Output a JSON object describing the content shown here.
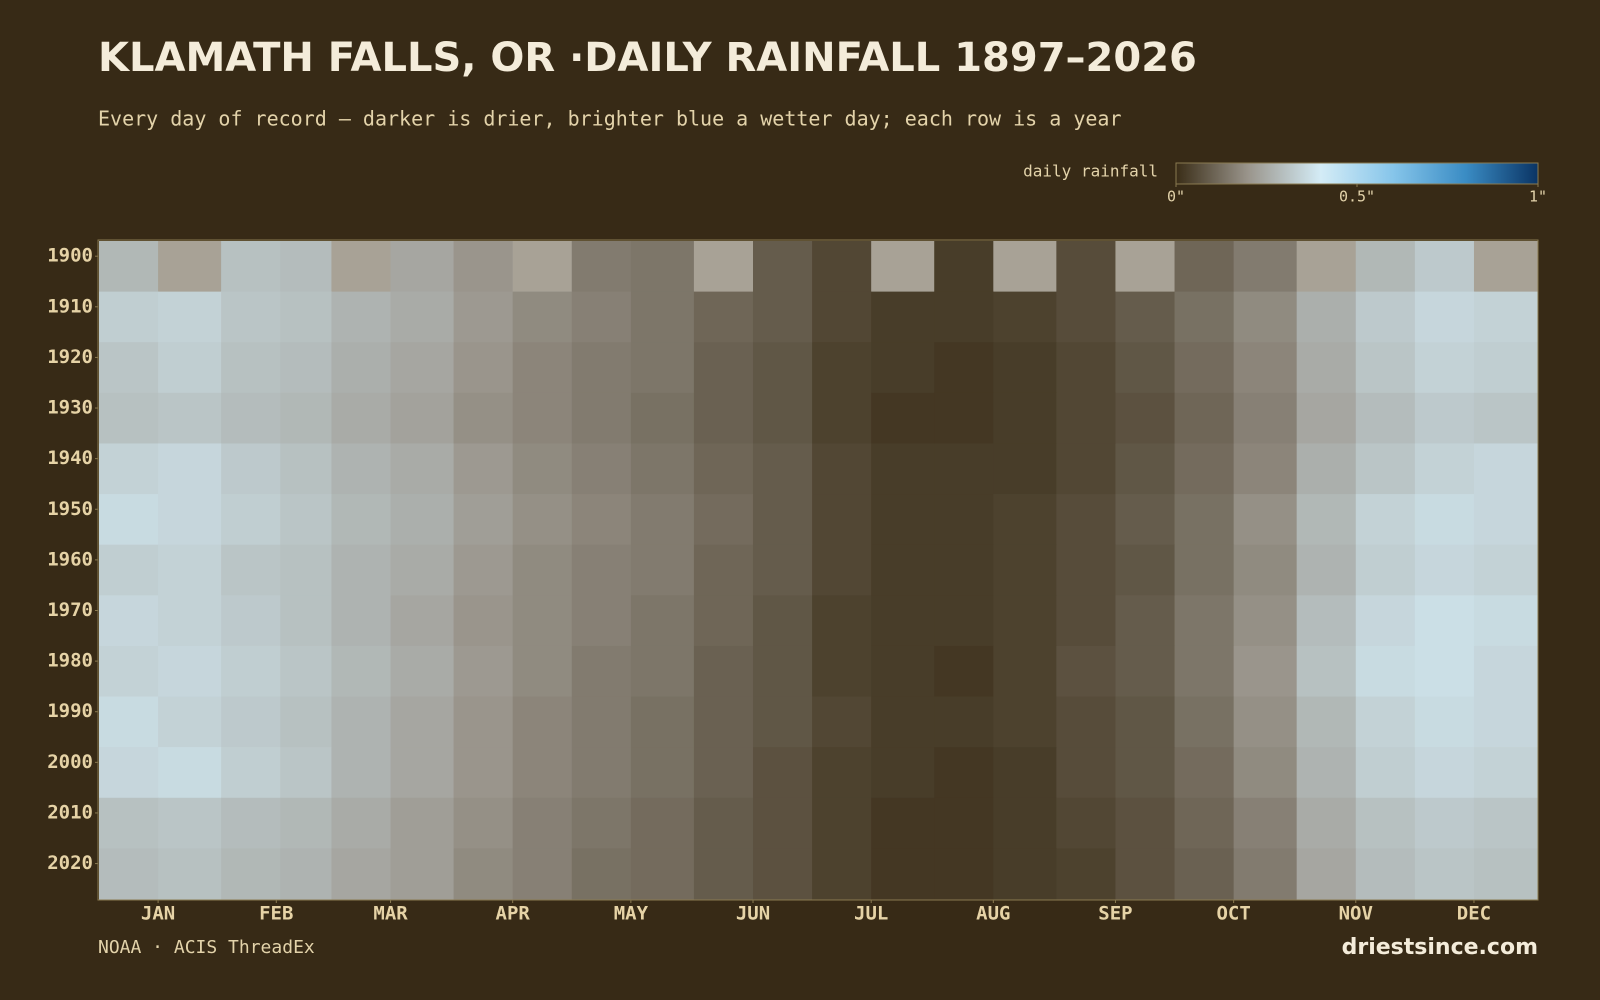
{
  "chart_data": {
    "type": "heatmap",
    "title": "KLAMATH FALLS, OR ·DAILY RAINFALL 1897–2026",
    "subtitle": "Every day of record — darker is drier, brighter blue a wetter day; each row is a year",
    "legend_title": "daily rainfall",
    "colorscale": [
      "#3a2d17",
      "#9a958c",
      "#d4ecf6",
      "#86c5ea",
      "#3a8cc4",
      "#0a3464"
    ],
    "missing_color": "#a8a296",
    "colorbar_lim": [
      0,
      1
    ],
    "colorbar_ticks": [
      {
        "value": 0,
        "label": "0\""
      },
      {
        "value": 0.5,
        "label": "0.5\""
      },
      {
        "value": 1,
        "label": "1\""
      }
    ],
    "xlim": [
      1,
      366
    ],
    "xticks": [
      {
        "value": 16,
        "label": "JAN"
      },
      {
        "value": 46,
        "label": "FEB"
      },
      {
        "value": 75,
        "label": "MAR"
      },
      {
        "value": 106,
        "label": "APR"
      },
      {
        "value": 136,
        "label": "MAY"
      },
      {
        "value": 167,
        "label": "JUN"
      },
      {
        "value": 197,
        "label": "JUL"
      },
      {
        "value": 228,
        "label": "AUG"
      },
      {
        "value": 259,
        "label": "SEP"
      },
      {
        "value": 289,
        "label": "OCT"
      },
      {
        "value": 320,
        "label": "NOV"
      },
      {
        "value": 350,
        "label": "DEC"
      }
    ],
    "ylim": [
      1897,
      2027
    ],
    "yticks": [
      1900,
      1910,
      1920,
      1930,
      1940,
      1950,
      1960,
      1970,
      1980,
      1990,
      2000,
      2010,
      2020
    ],
    "x_bins": [
      1,
      16,
      32,
      47,
      60,
      75,
      91,
      106,
      121,
      136,
      152,
      167,
      182,
      197,
      213,
      228,
      244,
      259,
      274,
      289,
      305,
      320,
      335,
      350,
      366
    ],
    "y_bins": [
      1897,
      1907,
      1917,
      1927,
      1937,
      1947,
      1957,
      1967,
      1977,
      1987,
      1997,
      2007,
      2017,
      2027
    ],
    "values": [
      [
        0.28,
        null,
        0.3,
        0.29,
        null,
        0.24,
        0.2,
        null,
        0.15,
        0.14,
        null,
        0.09,
        0.05,
        null,
        0.03,
        null,
        0.06,
        null,
        0.11,
        0.15,
        null,
        0.28,
        0.32,
        null
      ],
      [
        0.33,
        0.34,
        0.31,
        0.3,
        0.27,
        0.25,
        0.21,
        0.18,
        0.16,
        0.14,
        0.11,
        0.09,
        0.05,
        0.03,
        0.03,
        0.04,
        0.06,
        0.09,
        0.13,
        0.18,
        0.26,
        0.32,
        0.35,
        0.34
      ],
      [
        0.31,
        0.33,
        0.3,
        0.29,
        0.26,
        0.24,
        0.2,
        0.17,
        0.15,
        0.14,
        0.1,
        0.08,
        0.04,
        0.03,
        0.02,
        0.03,
        0.05,
        0.08,
        0.12,
        0.17,
        0.25,
        0.31,
        0.34,
        0.33
      ],
      [
        0.3,
        0.31,
        0.29,
        0.28,
        0.25,
        0.23,
        0.19,
        0.17,
        0.15,
        0.13,
        0.1,
        0.08,
        0.04,
        0.02,
        0.02,
        0.03,
        0.05,
        0.07,
        0.11,
        0.16,
        0.24,
        0.29,
        0.32,
        0.31
      ],
      [
        0.34,
        0.35,
        0.32,
        0.3,
        0.27,
        0.25,
        0.21,
        0.18,
        0.16,
        0.14,
        0.11,
        0.09,
        0.05,
        0.03,
        0.03,
        0.03,
        0.05,
        0.08,
        0.12,
        0.17,
        0.26,
        0.31,
        0.34,
        0.35
      ],
      [
        0.36,
        0.35,
        0.33,
        0.31,
        0.28,
        0.26,
        0.22,
        0.19,
        0.17,
        0.15,
        0.12,
        0.09,
        0.05,
        0.03,
        0.03,
        0.04,
        0.06,
        0.09,
        0.13,
        0.19,
        0.28,
        0.34,
        0.36,
        0.35
      ],
      [
        0.33,
        0.34,
        0.31,
        0.3,
        0.27,
        0.25,
        0.21,
        0.18,
        0.16,
        0.15,
        0.11,
        0.09,
        0.05,
        0.03,
        0.03,
        0.04,
        0.06,
        0.08,
        0.13,
        0.18,
        0.27,
        0.33,
        0.35,
        0.34
      ],
      [
        0.35,
        0.34,
        0.32,
        0.3,
        0.27,
        0.24,
        0.2,
        0.18,
        0.16,
        0.14,
        0.11,
        0.08,
        0.04,
        0.03,
        0.03,
        0.04,
        0.06,
        0.09,
        0.14,
        0.19,
        0.29,
        0.35,
        0.37,
        0.36
      ],
      [
        0.34,
        0.35,
        0.33,
        0.31,
        0.28,
        0.25,
        0.21,
        0.18,
        0.15,
        0.14,
        0.1,
        0.08,
        0.04,
        0.03,
        0.02,
        0.04,
        0.07,
        0.09,
        0.14,
        0.2,
        0.3,
        0.36,
        0.37,
        0.35
      ],
      [
        0.36,
        0.34,
        0.32,
        0.3,
        0.27,
        0.24,
        0.2,
        0.17,
        0.15,
        0.13,
        0.1,
        0.08,
        0.05,
        0.03,
        0.03,
        0.04,
        0.06,
        0.08,
        0.13,
        0.19,
        0.28,
        0.34,
        0.36,
        0.35
      ],
      [
        0.35,
        0.36,
        0.33,
        0.31,
        0.27,
        0.24,
        0.2,
        0.17,
        0.15,
        0.13,
        0.1,
        0.07,
        0.04,
        0.03,
        0.02,
        0.03,
        0.06,
        0.08,
        0.12,
        0.18,
        0.27,
        0.33,
        0.35,
        0.34
      ],
      [
        0.3,
        0.31,
        0.29,
        0.28,
        0.25,
        0.22,
        0.19,
        0.16,
        0.14,
        0.12,
        0.09,
        0.07,
        0.04,
        0.02,
        0.02,
        0.03,
        0.05,
        0.07,
        0.11,
        0.16,
        0.25,
        0.3,
        0.32,
        0.31
      ],
      [
        0.29,
        0.3,
        0.28,
        0.27,
        0.24,
        0.22,
        0.18,
        0.16,
        0.13,
        0.12,
        0.09,
        0.07,
        0.04,
        0.02,
        0.02,
        0.03,
        0.04,
        0.07,
        0.1,
        0.15,
        0.24,
        0.29,
        0.31,
        0.3
      ]
    ],
    "source": "NOAA · ACIS ThreadEx",
    "credit": "driestsince.com"
  }
}
